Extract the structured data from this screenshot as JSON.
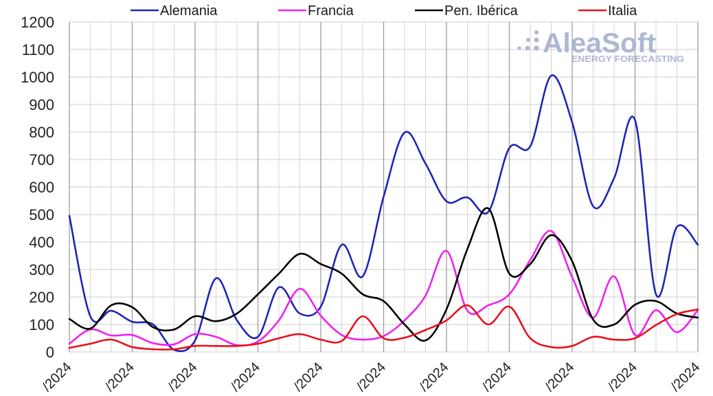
{
  "logo": {
    "name": "AleaSoft",
    "tagline": "ENERGY FORECASTING",
    "color": "#aab4d1"
  },
  "chart_data": {
    "type": "line",
    "smooth": true,
    "grid": true,
    "legend_position": "top",
    "ylim": [
      0,
      1200
    ],
    "y_ticks": [
      0,
      100,
      200,
      300,
      400,
      500,
      600,
      700,
      800,
      900,
      1000,
      1100,
      1200
    ],
    "categories": [
      "/2024",
      "",
      "",
      "/2024",
      "",
      "",
      "/2024",
      "",
      "",
      "/2024",
      "",
      "",
      "/2024",
      "",
      "",
      "/2024",
      "",
      "",
      "/2024",
      "",
      "",
      "/2024",
      "",
      "",
      "/2024",
      "",
      "",
      "/2024",
      "",
      "",
      "/2024"
    ],
    "series": [
      {
        "name": "Alemania",
        "color": "#1f24b5",
        "values": [
          495,
          130,
          150,
          110,
          100,
          8,
          42,
          268,
          115,
          55,
          235,
          140,
          165,
          390,
          275,
          565,
          798,
          685,
          548,
          562,
          510,
          742,
          748,
          1005,
          835,
          530,
          632,
          843,
          210,
          455,
          390
        ]
      },
      {
        "name": "Francia",
        "color": "#f020f0",
        "values": [
          30,
          82,
          60,
          62,
          32,
          28,
          65,
          55,
          25,
          38,
          115,
          230,
          132,
          62,
          45,
          58,
          115,
          205,
          368,
          150,
          170,
          210,
          335,
          440,
          272,
          125,
          275,
          62,
          152,
          72,
          152
        ]
      },
      {
        "name": "Pen. Ibérica",
        "color": "#000000",
        "values": [
          120,
          85,
          170,
          163,
          90,
          82,
          130,
          112,
          140,
          210,
          285,
          357,
          320,
          285,
          210,
          185,
          100,
          42,
          155,
          375,
          522,
          285,
          320,
          425,
          330,
          118,
          100,
          172,
          185,
          140,
          125
        ]
      },
      {
        "name": "Italia",
        "color": "#e8101a",
        "values": [
          15,
          30,
          45,
          18,
          10,
          10,
          22,
          22,
          22,
          30,
          50,
          65,
          45,
          40,
          130,
          50,
          52,
          80,
          115,
          170,
          100,
          165,
          50,
          18,
          22,
          55,
          45,
          50,
          98,
          138,
          155
        ]
      }
    ]
  }
}
